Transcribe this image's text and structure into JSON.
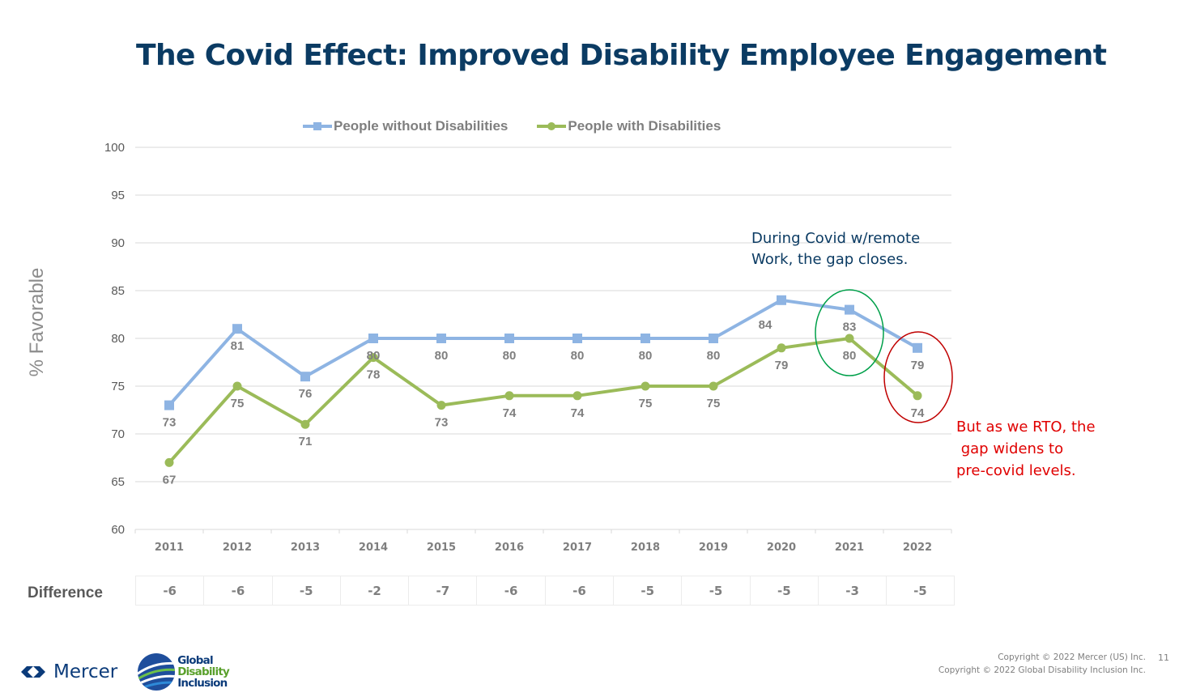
{
  "slide": {
    "title": "The Covid Effect: Improved Disability Employee Engagement",
    "page_number": "11",
    "copyright_lines": [
      "Copyright © 2022 Mercer (US) Inc.",
      "Copyright © 2022 Global Disability Inclusion Inc."
    ],
    "logos": {
      "mercer": "Mercer",
      "gdi": [
        "Global",
        "Disability",
        "Inclusion"
      ]
    },
    "annotations": {
      "covid": [
        "During Covid w/remote",
        "Work, the gap closes."
      ],
      "rto": "But as we RTO, the\n gap widens to\npre-covid levels.",
      "covid_color": "#00a04a",
      "rto_color": "#c00000"
    },
    "difference_row": {
      "label": "Difference",
      "values": [
        "-6",
        "-6",
        "-5",
        "-2",
        "-7",
        "-6",
        "-6",
        "-5",
        "-5",
        "-5",
        "-3",
        "-5"
      ]
    }
  },
  "chart_data": {
    "type": "line",
    "title": "The Covid Effect: Improved Disability Employee Engagement",
    "xlabel": "",
    "ylabel": "% Favorable",
    "ylim": [
      60,
      100
    ],
    "yticks": [
      60,
      65,
      70,
      75,
      80,
      85,
      90,
      95,
      100
    ],
    "grid": true,
    "legend_position": "top",
    "categories": [
      "2011",
      "2012",
      "2013",
      "2014",
      "2015",
      "2016",
      "2017",
      "2018",
      "2019",
      "2020",
      "2021",
      "2022"
    ],
    "series": [
      {
        "name": "People without Disabilities",
        "color": "#8eb4e3",
        "marker": "square",
        "values": [
          73,
          81,
          76,
          80,
          80,
          80,
          80,
          80,
          80,
          84,
          83,
          79
        ]
      },
      {
        "name": "People with Disabilities",
        "color": "#9bbb59",
        "marker": "circle",
        "values": [
          67,
          75,
          71,
          78,
          73,
          74,
          74,
          75,
          75,
          79,
          80,
          74
        ]
      }
    ],
    "highlights": [
      {
        "category": "2021",
        "color": "#00a04a",
        "note": "During Covid w/remote Work, the gap closes."
      },
      {
        "category": "2022",
        "color": "#c00000",
        "note": "But as we RTO, the gap widens to pre-covid levels."
      }
    ]
  }
}
